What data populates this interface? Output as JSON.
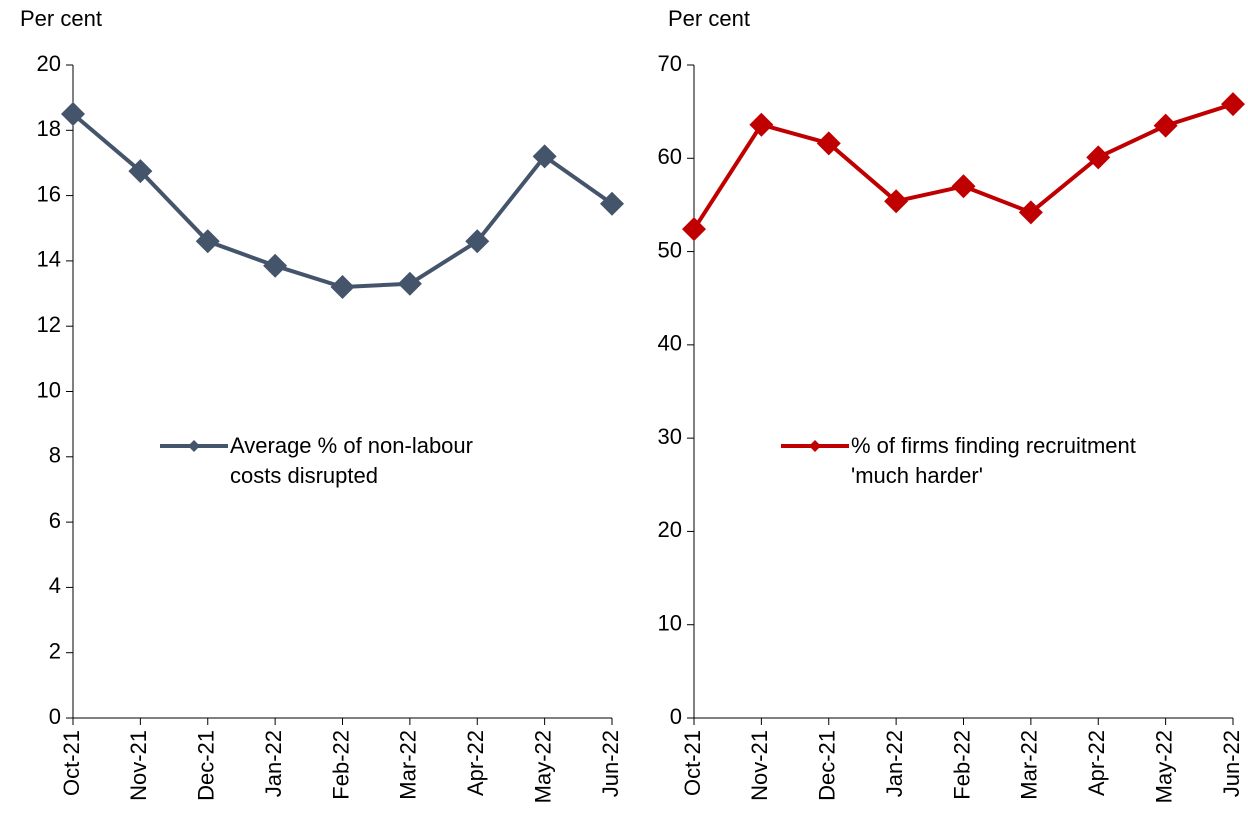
{
  "chart_data": [
    {
      "type": "line",
      "y_label": "Per cent",
      "categories": [
        "Oct-21",
        "Nov-21",
        "Dec-21",
        "Jan-22",
        "Feb-22",
        "Mar-22",
        "Apr-22",
        "May-22",
        "Jun-22"
      ],
      "series": [
        {
          "name": "Average % of non-labour costs disrupted",
          "color": "#44546a",
          "values": [
            18.5,
            16.75,
            14.6,
            13.85,
            13.2,
            13.3,
            14.6,
            17.2,
            15.75
          ]
        }
      ],
      "ylim": [
        0,
        20
      ],
      "yticks": [
        0,
        2,
        4,
        6,
        8,
        10,
        12,
        14,
        16,
        18,
        20
      ],
      "legend": "center",
      "grid": false
    },
    {
      "type": "line",
      "y_label": "Per cent",
      "categories": [
        "Oct-21",
        "Nov-21",
        "Dec-21",
        "Jan-22",
        "Feb-22",
        "Mar-22",
        "Apr-22",
        "May-22",
        "Jun-22"
      ],
      "series": [
        {
          "name": "% of firms finding recruitment 'much harder'",
          "color": "#c00000",
          "values": [
            52.4,
            63.6,
            61.6,
            55.4,
            57.0,
            54.2,
            60.1,
            63.5,
            65.8
          ]
        }
      ],
      "ylim": [
        0,
        70
      ],
      "yticks": [
        0,
        10,
        20,
        30,
        40,
        50,
        60,
        70
      ],
      "legend": "center",
      "grid": false
    }
  ]
}
